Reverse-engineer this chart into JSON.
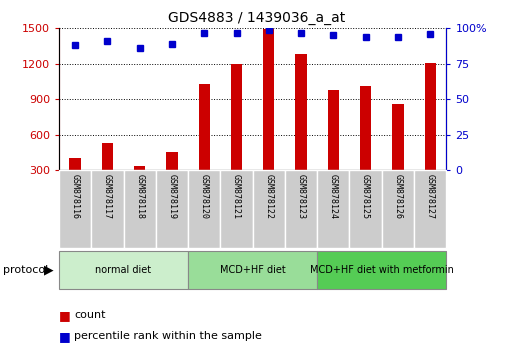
{
  "title": "GDS4883 / 1439036_a_at",
  "samples": [
    "GSM878116",
    "GSM878117",
    "GSM878118",
    "GSM878119",
    "GSM878120",
    "GSM878121",
    "GSM878122",
    "GSM878123",
    "GSM878124",
    "GSM878125",
    "GSM878126",
    "GSM878127"
  ],
  "counts": [
    400,
    530,
    335,
    455,
    1030,
    1195,
    1495,
    1285,
    975,
    1015,
    860,
    1205
  ],
  "percentile_ranks": [
    88,
    91,
    86,
    89,
    97,
    97,
    99,
    97,
    95,
    94,
    94,
    96
  ],
  "bar_color": "#cc0000",
  "dot_color": "#0000cc",
  "ylim_left": [
    300,
    1500
  ],
  "ylim_right": [
    0,
    100
  ],
  "yticks_left": [
    300,
    600,
    900,
    1200,
    1500
  ],
  "yticks_right": [
    0,
    25,
    50,
    75,
    100
  ],
  "groups": [
    {
      "label": "normal diet",
      "start": 0,
      "end": 4,
      "color": "#cceecc"
    },
    {
      "label": "MCD+HF diet",
      "start": 4,
      "end": 8,
      "color": "#99dd99"
    },
    {
      "label": "MCD+HF diet with metformin",
      "start": 8,
      "end": 12,
      "color": "#55cc55"
    }
  ],
  "protocol_label": "protocol",
  "legend_count_label": "count",
  "legend_pct_label": "percentile rank within the sample",
  "bg_color": "#ffffff",
  "tick_label_color_left": "#cc0000",
  "tick_label_color_right": "#0000cc",
  "xticklabel_bg": "#cccccc",
  "bar_width": 0.35
}
